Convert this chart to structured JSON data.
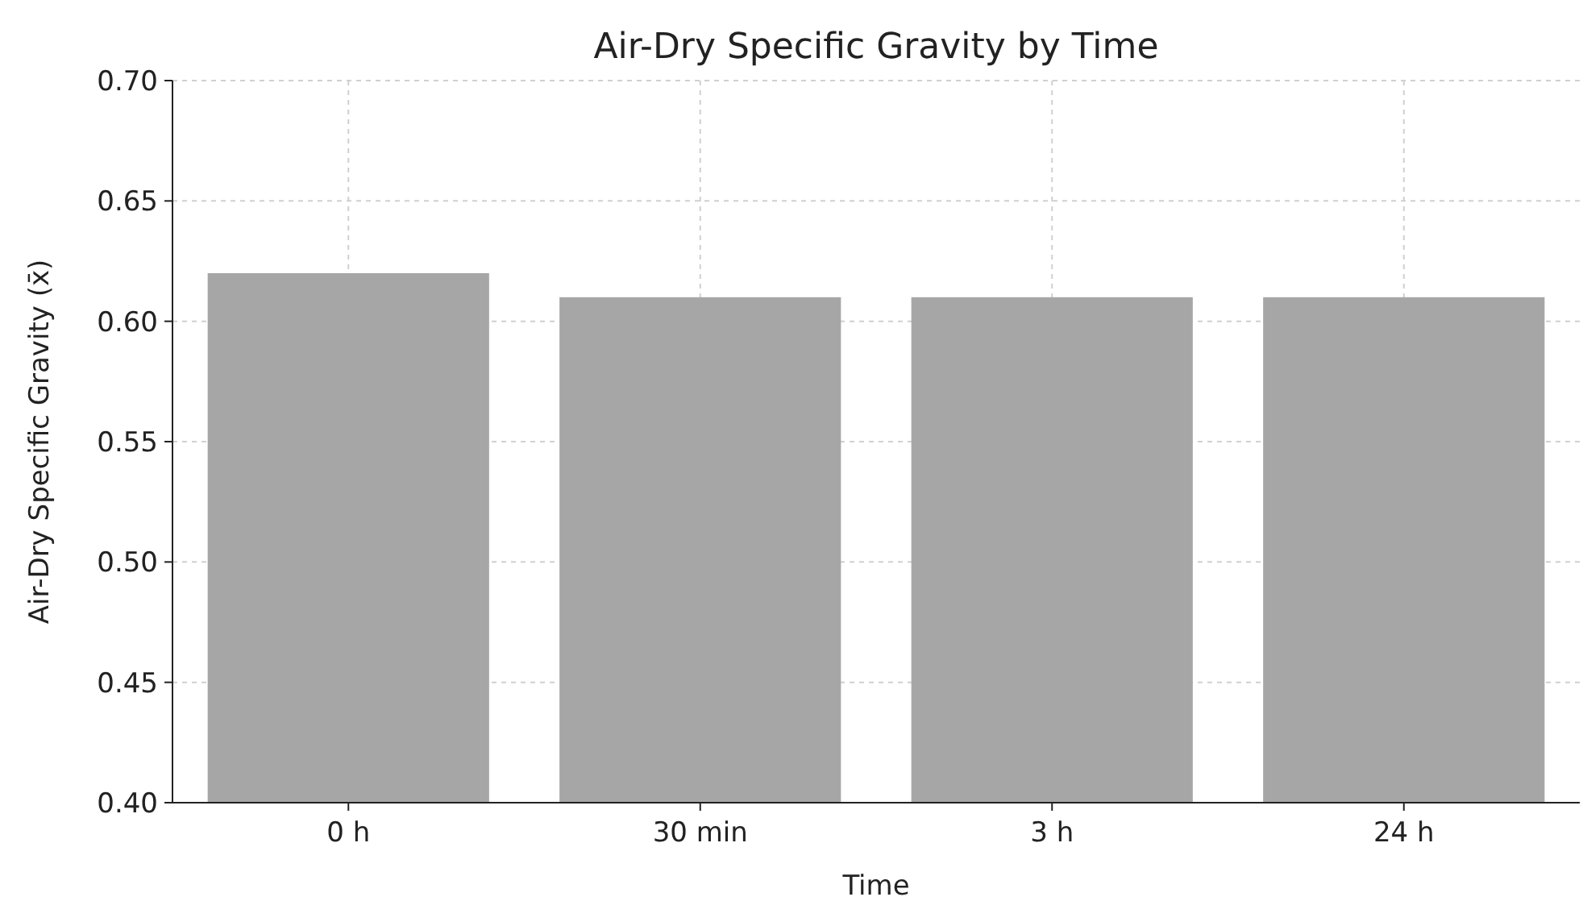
{
  "chart_data": {
    "type": "bar",
    "title": "Air-Dry Specific Gravity by Time",
    "xlabel": "Time",
    "ylabel": "Air-Dry Specific Gravity (x̄)",
    "categories": [
      "0 h",
      "30 min",
      "3 h",
      "24 h"
    ],
    "values": [
      0.62,
      0.61,
      0.61,
      0.61
    ],
    "color": "#a6a6a6",
    "ylim": [
      0.4,
      0.7
    ],
    "yticks": [
      {
        "value": 0.4,
        "label": "0.40"
      },
      {
        "value": 0.45,
        "label": "0.45"
      },
      {
        "value": 0.5,
        "label": "0.50"
      },
      {
        "value": 0.55,
        "label": "0.55"
      },
      {
        "value": 0.6,
        "label": "0.60"
      },
      {
        "value": 0.65,
        "label": "0.65"
      },
      {
        "value": 0.7,
        "label": "0.70"
      }
    ],
    "grid": true
  }
}
